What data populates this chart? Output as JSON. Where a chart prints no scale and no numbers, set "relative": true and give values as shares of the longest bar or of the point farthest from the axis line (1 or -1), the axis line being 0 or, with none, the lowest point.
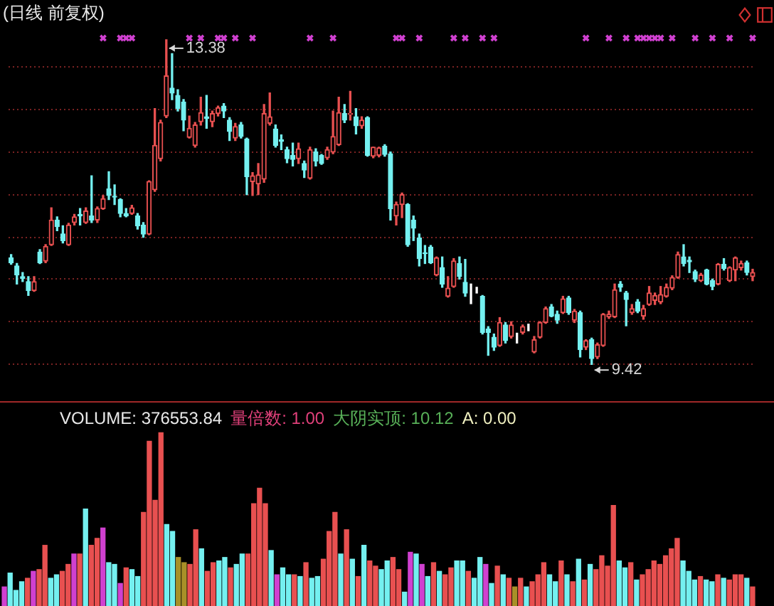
{
  "chart_data": [
    {
      "type": "candlestick",
      "title": "(日线 前复权)",
      "tick_labels": false,
      "grid": "y",
      "yticks": [
        {
          "value": 9.42,
          "label": null
        },
        {
          "value": 9.94,
          "label": null
        },
        {
          "value": 10.46,
          "label": null
        },
        {
          "value": 10.97,
          "label": null
        },
        {
          "value": 11.49,
          "label": null
        },
        {
          "value": 12.01,
          "label": null
        },
        {
          "value": 12.53,
          "label": null
        },
        {
          "value": 13.05,
          "label": null
        }
      ],
      "categories": [
        null,
        null,
        null,
        null,
        null,
        null,
        null,
        null,
        null,
        null,
        null,
        null,
        null,
        null,
        null,
        null,
        null,
        null,
        null,
        null,
        null,
        null,
        null,
        null,
        null,
        null,
        null,
        null,
        null,
        null,
        null,
        null,
        null,
        null,
        null,
        null,
        null,
        null,
        null,
        null,
        null,
        null,
        null,
        null,
        null,
        null,
        null,
        null,
        null,
        null,
        null,
        null,
        null,
        null,
        null,
        null,
        null,
        null,
        null,
        null,
        null,
        null,
        null,
        null,
        null,
        null,
        null,
        null,
        null,
        null,
        null,
        null,
        null,
        null,
        null,
        null,
        null,
        null,
        null,
        null,
        null,
        null,
        null,
        null,
        null,
        null,
        null,
        null,
        null,
        null,
        null,
        null,
        null,
        null,
        null,
        null,
        null,
        null,
        null,
        null,
        null,
        null,
        null,
        null,
        null,
        null,
        null,
        null,
        null,
        null,
        null,
        null,
        null,
        null,
        null,
        null,
        null,
        null,
        null,
        null,
        null,
        null,
        null,
        null,
        null,
        null,
        null,
        null,
        null,
        null
      ],
      "ohlc": [
        [
          10.72,
          10.76,
          10.64,
          10.66
        ],
        [
          10.62,
          10.65,
          10.4,
          10.51
        ],
        [
          10.49,
          10.54,
          10.43,
          10.47
        ],
        [
          10.43,
          10.49,
          10.26,
          10.32
        ],
        [
          10.32,
          10.49,
          10.31,
          10.43
        ],
        [
          10.79,
          10.82,
          10.65,
          10.66
        ],
        [
          10.68,
          10.88,
          10.66,
          10.86
        ],
        [
          10.88,
          11.33,
          10.87,
          11.18
        ],
        [
          11.18,
          11.22,
          11.05,
          11.1
        ],
        [
          11.01,
          11.11,
          10.9,
          10.93
        ],
        [
          10.88,
          11.14,
          10.87,
          11.12
        ],
        [
          11.15,
          11.25,
          11.12,
          11.22
        ],
        [
          11.25,
          11.32,
          11.12,
          11.23
        ],
        [
          11.15,
          11.33,
          11.14,
          11.29
        ],
        [
          11.23,
          11.72,
          11.15,
          11.18
        ],
        [
          11.18,
          11.34,
          11.15,
          11.32
        ],
        [
          11.32,
          11.48,
          11.31,
          11.44
        ],
        [
          11.56,
          11.77,
          11.43,
          11.48
        ],
        [
          11.47,
          11.61,
          11.37,
          11.46
        ],
        [
          11.43,
          11.44,
          11.22,
          11.26
        ],
        [
          11.26,
          11.32,
          11.22,
          11.23
        ],
        [
          11.26,
          11.36,
          11.25,
          11.33
        ],
        [
          11.23,
          11.26,
          11.07,
          11.11
        ],
        [
          11.12,
          11.15,
          10.97,
          11.01
        ],
        [
          11.01,
          11.66,
          11.0,
          11.65
        ],
        [
          11.55,
          12.54,
          11.53,
          12.09
        ],
        [
          11.93,
          12.4,
          11.9,
          12.37
        ],
        [
          12.45,
          13.38,
          12.43,
          12.94
        ],
        [
          12.79,
          13.21,
          12.65,
          12.73
        ],
        [
          12.7,
          12.77,
          12.51,
          12.54
        ],
        [
          12.62,
          12.65,
          12.27,
          12.4
        ],
        [
          12.19,
          12.45,
          12.18,
          12.3
        ],
        [
          12.09,
          12.37,
          12.07,
          12.34
        ],
        [
          12.38,
          12.68,
          12.34,
          12.49
        ],
        [
          12.44,
          12.7,
          12.3,
          12.42
        ],
        [
          12.38,
          12.51,
          12.32,
          12.48
        ],
        [
          12.48,
          12.57,
          12.45,
          12.55
        ],
        [
          12.57,
          12.6,
          12.43,
          12.51
        ],
        [
          12.4,
          12.43,
          12.15,
          12.26
        ],
        [
          12.18,
          12.36,
          12.15,
          12.32
        ],
        [
          12.34,
          12.37,
          12.18,
          12.2
        ],
        [
          12.17,
          12.18,
          11.49,
          11.71
        ],
        [
          11.65,
          11.76,
          11.48,
          11.72
        ],
        [
          11.62,
          11.87,
          11.49,
          11.73
        ],
        [
          11.68,
          12.59,
          11.64,
          12.48
        ],
        [
          12.36,
          12.73,
          12.34,
          12.44
        ],
        [
          12.29,
          12.34,
          12.07,
          12.09
        ],
        [
          12.16,
          12.22,
          12.04,
          12.14
        ],
        [
          12.04,
          12.07,
          11.88,
          11.93
        ],
        [
          11.97,
          12.12,
          11.84,
          11.92
        ],
        [
          11.93,
          12.12,
          11.87,
          12.05
        ],
        [
          11.87,
          11.9,
          11.7,
          11.79
        ],
        [
          11.69,
          12.07,
          11.68,
          12.04
        ],
        [
          12.01,
          12.05,
          11.84,
          11.9
        ],
        [
          11.97,
          11.98,
          11.86,
          11.87
        ],
        [
          11.94,
          12.07,
          11.92,
          12.04
        ],
        [
          12.01,
          12.51,
          11.99,
          12.2
        ],
        [
          12.1,
          12.68,
          12.09,
          12.49
        ],
        [
          12.48,
          12.59,
          12.37,
          12.4
        ],
        [
          12.47,
          12.75,
          12.4,
          12.48
        ],
        [
          12.44,
          12.54,
          12.23,
          12.33
        ],
        [
          12.33,
          12.44,
          12.3,
          12.4
        ],
        [
          12.43,
          12.44,
          11.96,
          11.97
        ],
        [
          11.96,
          12.07,
          11.94,
          12.07
        ],
        [
          11.97,
          12.07,
          11.95,
          12.06
        ],
        [
          12.08,
          12.1,
          11.96,
          11.98
        ],
        [
          11.99,
          12.01,
          11.18,
          11.32
        ],
        [
          11.23,
          11.4,
          11.12,
          11.37
        ],
        [
          11.37,
          11.51,
          11.21,
          11.49
        ],
        [
          11.37,
          11.38,
          10.86,
          10.88
        ],
        [
          11.18,
          11.23,
          10.93,
          11.08
        ],
        [
          10.96,
          11.01,
          10.62,
          10.71
        ],
        [
          10.78,
          10.87,
          10.65,
          10.77
        ],
        [
          10.85,
          10.87,
          10.65,
          10.66
        ],
        [
          10.51,
          10.73,
          10.5,
          10.72
        ],
        [
          10.6,
          10.73,
          10.36,
          10.4
        ],
        [
          10.25,
          10.49,
          10.24,
          10.35
        ],
        [
          10.37,
          10.71,
          10.36,
          10.68
        ],
        [
          10.65,
          10.73,
          10.46,
          10.49
        ],
        [
          10.42,
          10.7,
          10.25,
          10.29
        ],
        [
          10.35,
          10.4,
          10.16,
          10.35
        ],
        [
          10.32,
          10.36,
          10.29,
          10.32
        ],
        [
          10.25,
          10.26,
          9.79,
          9.81
        ],
        [
          9.85,
          9.88,
          9.53,
          9.81
        ],
        [
          9.75,
          9.79,
          9.59,
          9.63
        ],
        [
          9.65,
          9.99,
          9.64,
          9.93
        ],
        [
          9.9,
          9.93,
          9.68,
          9.71
        ],
        [
          9.76,
          9.94,
          9.74,
          9.9
        ],
        [
          9.74,
          9.8,
          9.68,
          9.74
        ],
        [
          9.81,
          9.9,
          9.79,
          9.88
        ],
        [
          9.88,
          9.91,
          9.83,
          9.88
        ],
        [
          9.57,
          9.76,
          9.56,
          9.72
        ],
        [
          9.75,
          9.94,
          9.74,
          9.93
        ],
        [
          9.93,
          10.12,
          9.92,
          10.1
        ],
        [
          10.12,
          10.15,
          10.0,
          10.01
        ],
        [
          10.03,
          10.07,
          9.92,
          9.96
        ],
        [
          10.05,
          10.25,
          10.04,
          10.22
        ],
        [
          10.23,
          10.25,
          10.03,
          10.05
        ],
        [
          9.96,
          10.09,
          9.93,
          10.07
        ],
        [
          10.05,
          10.07,
          9.51,
          9.6
        ],
        [
          9.63,
          9.72,
          9.6,
          9.71
        ],
        [
          9.72,
          9.74,
          9.42,
          9.49
        ],
        [
          9.51,
          9.68,
          9.49,
          9.66
        ],
        [
          9.65,
          10.04,
          9.64,
          10.03
        ],
        [
          10.0,
          10.07,
          9.98,
          10.03
        ],
        [
          10.0,
          10.4,
          9.99,
          10.33
        ],
        [
          10.4,
          10.43,
          10.31,
          10.36
        ],
        [
          10.29,
          10.31,
          9.89,
          10.21
        ],
        [
          10.05,
          10.15,
          10.03,
          10.1
        ],
        [
          10.18,
          10.21,
          10.05,
          10.07
        ],
        [
          10.01,
          10.14,
          9.97,
          10.1
        ],
        [
          10.15,
          10.37,
          10.14,
          10.29
        ],
        [
          10.2,
          10.29,
          10.15,
          10.26
        ],
        [
          10.18,
          10.37,
          10.16,
          10.27
        ],
        [
          10.25,
          10.4,
          10.24,
          10.36
        ],
        [
          10.35,
          10.5,
          10.33,
          10.48
        ],
        [
          10.48,
          10.79,
          10.47,
          10.76
        ],
        [
          10.73,
          10.88,
          10.62,
          10.65
        ],
        [
          10.69,
          10.73,
          10.54,
          10.67
        ],
        [
          10.55,
          10.57,
          10.43,
          10.46
        ],
        [
          10.44,
          10.53,
          10.43,
          10.51
        ],
        [
          10.57,
          10.58,
          10.39,
          10.4
        ],
        [
          10.44,
          10.46,
          10.33,
          10.37
        ],
        [
          10.4,
          10.65,
          10.39,
          10.64
        ],
        [
          10.64,
          10.71,
          10.57,
          10.59
        ],
        [
          10.44,
          10.61,
          10.43,
          10.6
        ],
        [
          10.57,
          10.73,
          10.44,
          10.72
        ],
        [
          10.6,
          10.68,
          10.57,
          10.65
        ],
        [
          10.66,
          10.68,
          10.51,
          10.54
        ],
        [
          10.49,
          10.58,
          10.44,
          10.54
        ]
      ],
      "colors": [
        "#74f0f0",
        "#74f0f0",
        "#74f0f0",
        "#74f0f0",
        "#e85050",
        "#74f0f0",
        "#e85050",
        "#e85050",
        "#74f0f0",
        "#74f0f0",
        "#e85050",
        "#e85050",
        "#74f0f0",
        "#e85050",
        "#74f0f0",
        "#e85050",
        "#e85050",
        "#74f0f0",
        "#74f0f0",
        "#74f0f0",
        "#74f0f0",
        "#e85050",
        "#74f0f0",
        "#74f0f0",
        "#e85050",
        "#e85050",
        "#e85050",
        "#e85050",
        "#74f0f0",
        "#74f0f0",
        "#74f0f0",
        "#e85050",
        "#e85050",
        "#e85050",
        "#74f0f0",
        "#e85050",
        "#e85050",
        "#74f0f0",
        "#74f0f0",
        "#e85050",
        "#74f0f0",
        "#74f0f0",
        "#e85050",
        "#e85050",
        "#e85050",
        "#e85050",
        "#74f0f0",
        "#74f0f0",
        "#74f0f0",
        "#74f0f0",
        "#e85050",
        "#74f0f0",
        "#e85050",
        "#74f0f0",
        "#74f0f0",
        "#e85050",
        "#e85050",
        "#e85050",
        "#74f0f0",
        "#e85050",
        "#74f0f0",
        "#e85050",
        "#74f0f0",
        "#e85050",
        "#e85050",
        "#74f0f0",
        "#74f0f0",
        "#e85050",
        "#e85050",
        "#74f0f0",
        "#74f0f0",
        "#74f0f0",
        "#74f0f0",
        "#74f0f0",
        "#e85050",
        "#74f0f0",
        "#e85050",
        "#e85050",
        "#74f0f0",
        "#74f0f0",
        "#ffffff",
        "#ffffff",
        "#74f0f0",
        "#74f0f0",
        "#74f0f0",
        "#e85050",
        "#74f0f0",
        "#e85050",
        "#ffffff",
        "#e85050",
        "#ffffff",
        "#e85050",
        "#e85050",
        "#e85050",
        "#74f0f0",
        "#74f0f0",
        "#e85050",
        "#74f0f0",
        "#e85050",
        "#74f0f0",
        "#e85050",
        "#74f0f0",
        "#e85050",
        "#e85050",
        "#e85050",
        "#e85050",
        "#74f0f0",
        "#74f0f0",
        "#e85050",
        "#74f0f0",
        "#e85050",
        "#e85050",
        "#e85050",
        "#e85050",
        "#e85050",
        "#e85050",
        "#e85050",
        "#74f0f0",
        "#74f0f0",
        "#74f0f0",
        "#e85050",
        "#74f0f0",
        "#74f0f0",
        "#e85050",
        "#74f0f0",
        "#e85050",
        "#e85050",
        "#e85050",
        "#74f0f0",
        "#e85050"
      ],
      "series": [
        {
          "type": "scatter",
          "marker": "cross",
          "color": "#d040d0",
          "values": [
            null,
            null,
            null,
            null,
            null,
            null,
            null,
            null,
            null,
            null,
            null,
            null,
            null,
            null,
            null,
            null,
            13.4,
            null,
            null,
            13.4,
            13.4,
            13.4,
            null,
            null,
            null,
            null,
            null,
            null,
            null,
            null,
            null,
            13.4,
            null,
            13.4,
            null,
            null,
            13.4,
            13.4,
            null,
            13.4,
            null,
            null,
            13.4,
            null,
            null,
            null,
            null,
            null,
            null,
            null,
            null,
            null,
            13.4,
            null,
            null,
            null,
            13.4,
            null,
            null,
            null,
            null,
            null,
            null,
            null,
            null,
            null,
            null,
            13.4,
            13.4,
            null,
            null,
            13.4,
            null,
            null,
            null,
            null,
            null,
            13.4,
            null,
            13.4,
            null,
            null,
            13.4,
            null,
            13.4,
            null,
            null,
            null,
            null,
            null,
            null,
            null,
            null,
            null,
            null,
            null,
            null,
            null,
            null,
            null,
            13.4,
            null,
            null,
            null,
            13.4,
            null,
            null,
            13.4,
            null,
            13.4,
            13.4,
            13.4,
            13.4,
            13.4,
            null,
            13.4,
            null,
            null,
            null,
            13.4,
            null,
            null,
            13.4,
            null,
            null,
            13.4,
            null,
            null,
            null,
            13.4
          ]
        }
      ],
      "annotations": [
        "13.38",
        "9.42"
      ]
    },
    {
      "type": "bar",
      "relative": true,
      "tick_labels": false,
      "title": "VOLUME: 376553.84",
      "annotations": [
        "量倍数: 1.00",
        "大阴实顶: 10.12",
        "A: 0.00"
      ],
      "categories": [
        null,
        null,
        null,
        null,
        null,
        null,
        null,
        null,
        null,
        null,
        null,
        null,
        null,
        null,
        null,
        null,
        null,
        null,
        null,
        null,
        null,
        null,
        null,
        null,
        null,
        null,
        null,
        null,
        null,
        null,
        null,
        null,
        null,
        null,
        null,
        null,
        null,
        null,
        null,
        null,
        null,
        null,
        null,
        null,
        null,
        null,
        null,
        null,
        null,
        null,
        null,
        null,
        null,
        null,
        null,
        null,
        null,
        null,
        null,
        null,
        null,
        null,
        null,
        null,
        null,
        null,
        null,
        null,
        null,
        null,
        null,
        null,
        null,
        null,
        null,
        null,
        null,
        null,
        null,
        null,
        null,
        null,
        null,
        null,
        null,
        null,
        null,
        null,
        null,
        null,
        null,
        null,
        null,
        null,
        null,
        null,
        null,
        null,
        null,
        null,
        null,
        null,
        null,
        null,
        null,
        null,
        null,
        null,
        null,
        null,
        null,
        null,
        null,
        null,
        null,
        null,
        null,
        null,
        null,
        null,
        null,
        null,
        null,
        null,
        null,
        null,
        null,
        null,
        null,
        null
      ],
      "values": [
        0.11,
        0.19,
        0.09,
        0.14,
        0.16,
        0.2,
        0.21,
        0.35,
        0.16,
        0.18,
        0.2,
        0.24,
        0.3,
        0.3,
        0.56,
        0.35,
        0.39,
        0.45,
        0.25,
        0.24,
        0.13,
        0.22,
        0.21,
        0.17,
        0.54,
        0.95,
        0.61,
        1,
        0.47,
        0.43,
        0.28,
        0.25,
        0.24,
        0.44,
        0.33,
        0.2,
        0.25,
        0.26,
        0.28,
        0.22,
        0.24,
        0.3,
        0.3,
        0.59,
        0.68,
        0.59,
        0.32,
        0.18,
        0.22,
        0.18,
        0.18,
        0.17,
        0.25,
        0.16,
        0.17,
        0.27,
        0.43,
        0.54,
        0.3,
        0.44,
        0.27,
        0.17,
        0.35,
        0.26,
        0.23,
        0.21,
        0.26,
        0.28,
        0.21,
        0.08,
        0.31,
        0.3,
        0.24,
        0.17,
        0.25,
        0.2,
        0.18,
        0.22,
        0.26,
        0.26,
        0.2,
        0.16,
        0.28,
        0.24,
        0.13,
        0.23,
        0.18,
        0.16,
        0.11,
        0.16,
        0.11,
        0.14,
        0.18,
        0.25,
        0.18,
        0.14,
        0.26,
        0.18,
        0.14,
        0.27,
        0.15,
        0.24,
        0.21,
        0.29,
        0.23,
        0.58,
        0.26,
        0.22,
        0.25,
        0.15,
        0.18,
        0.21,
        0.26,
        0.24,
        0.29,
        0.33,
        0.39,
        0.26,
        0.2,
        0.15,
        0.17,
        0.15,
        0.14,
        0.18,
        0.16,
        0.15,
        0.18,
        0.18,
        0.16,
        0.11
      ],
      "colors": [
        "#d040d0",
        "#74f0f0",
        "#74f0f0",
        "#74f0f0",
        "#e85050",
        "#d040d0",
        "#e85050",
        "#e85050",
        "#74f0f0",
        "#74f0f0",
        "#e85050",
        "#e85050",
        "#d040d0",
        "#e85050",
        "#74f0f0",
        "#e85050",
        "#e85050",
        "#d040d0",
        "#74f0f0",
        "#74f0f0",
        "#d040d0",
        "#e85050",
        "#74f0f0",
        "#74f0f0",
        "#e85050",
        "#e85050",
        "#e85050",
        "#e85050",
        "#74f0f0",
        "#74f0f0",
        "#a89028",
        "#a89028",
        "#e85050",
        "#e85050",
        "#74f0f0",
        "#e85050",
        "#e85050",
        "#74f0f0",
        "#74f0f0",
        "#e85050",
        "#74f0f0",
        "#74f0f0",
        "#e85050",
        "#e85050",
        "#e85050",
        "#e85050",
        "#74f0f0",
        "#d040d0",
        "#74f0f0",
        "#74f0f0",
        "#e85050",
        "#74f0f0",
        "#e85050",
        "#74f0f0",
        "#74f0f0",
        "#e85050",
        "#e85050",
        "#e85050",
        "#74f0f0",
        "#e85050",
        "#74f0f0",
        "#e85050",
        "#74f0f0",
        "#e85050",
        "#e85050",
        "#74f0f0",
        "#74f0f0",
        "#e85050",
        "#e85050",
        "#74f0f0",
        "#d040d0",
        "#74f0f0",
        "#d040d0",
        "#74f0f0",
        "#e85050",
        "#74f0f0",
        "#e85050",
        "#e85050",
        "#74f0f0",
        "#74f0f0",
        "#e85050",
        "#74f0f0",
        "#74f0f0",
        "#d040d0",
        "#74f0f0",
        "#e85050",
        "#74f0f0",
        "#e85050",
        "#a89028",
        "#e85050",
        "#74f0f0",
        "#e85050",
        "#e85050",
        "#e85050",
        "#74f0f0",
        "#74f0f0",
        "#e85050",
        "#74f0f0",
        "#e85050",
        "#74f0f0",
        "#e85050",
        "#74f0f0",
        "#e85050",
        "#e85050",
        "#e85050",
        "#e85050",
        "#74f0f0",
        "#74f0f0",
        "#e85050",
        "#74f0f0",
        "#e85050",
        "#e85050",
        "#e85050",
        "#e85050",
        "#e85050",
        "#e85050",
        "#e85050",
        "#74f0f0",
        "#74f0f0",
        "#74f0f0",
        "#e85050",
        "#74f0f0",
        "#74f0f0",
        "#e85050",
        "#74f0f0",
        "#e85050",
        "#e85050",
        "#e85050",
        "#74f0f0",
        "#e85050"
      ]
    }
  ]
}
